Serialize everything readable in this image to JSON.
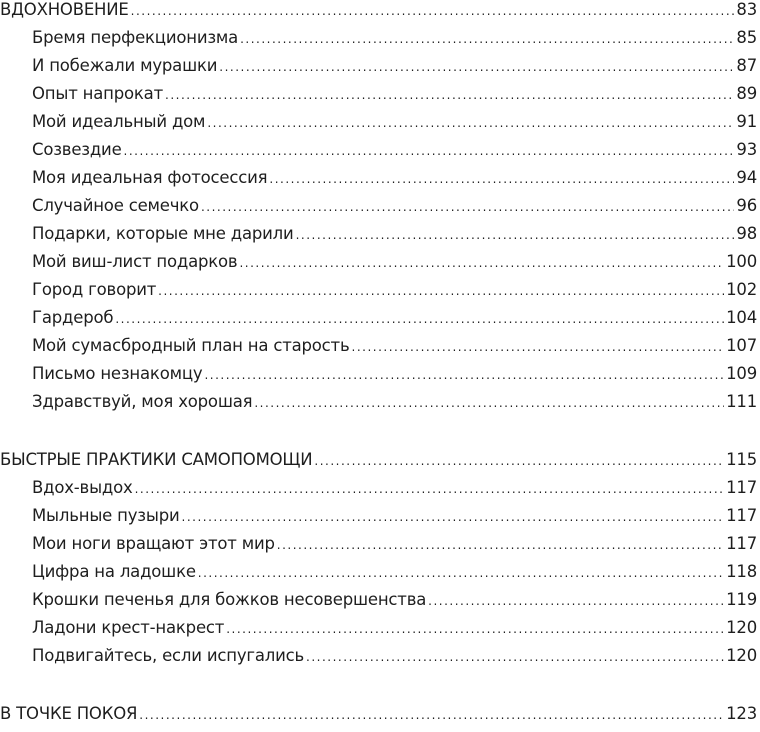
{
  "sections": [
    {
      "title": "ВДОХНОВЕНИЕ",
      "page": "83",
      "items": [
        {
          "title": "Бремя перфекционизма",
          "page": "85"
        },
        {
          "title": "И побежали мурашки",
          "page": "87"
        },
        {
          "title": "Опыт напрокат",
          "page": "89"
        },
        {
          "title": "Мой идеальный дом",
          "page": "91"
        },
        {
          "title": "Созвездие",
          "page": "93"
        },
        {
          "title": "Моя идеальная фотосессия",
          "page": "94"
        },
        {
          "title": "Случайное семечко",
          "page": "96"
        },
        {
          "title": "Подарки, которые мне дарили",
          "page": "98"
        },
        {
          "title": "Мой виш-лист подарков",
          "page": "100"
        },
        {
          "title": "Город говорит",
          "page": "102"
        },
        {
          "title": "Гардероб",
          "page": "104"
        },
        {
          "title": "Мой сумасбродный план на старость",
          "page": "107"
        },
        {
          "title": "Письмо незнакомцу",
          "page": "109"
        },
        {
          "title": "Здравствуй, моя хорошая",
          "page": "111"
        }
      ]
    },
    {
      "title": "БЫСТРЫЕ ПРАКТИКИ САМОПОМОЩИ",
      "page": "115",
      "items": [
        {
          "title": "Вдох-выдох",
          "page": "117"
        },
        {
          "title": "Мыльные пузыри",
          "page": "117"
        },
        {
          "title": "Мои ноги вращают этот мир",
          "page": "117"
        },
        {
          "title": "Цифра на ладошке",
          "page": "118"
        },
        {
          "title": "Крошки печенья для божков несовершенства",
          "page": "119"
        },
        {
          "title": "Ладони крест-накрест",
          "page": "120"
        },
        {
          "title": "Подвигайтесь, если испугались",
          "page": "120"
        }
      ]
    },
    {
      "title": "В ТОЧКЕ ПОКОЯ",
      "page": "123",
      "items": []
    }
  ]
}
